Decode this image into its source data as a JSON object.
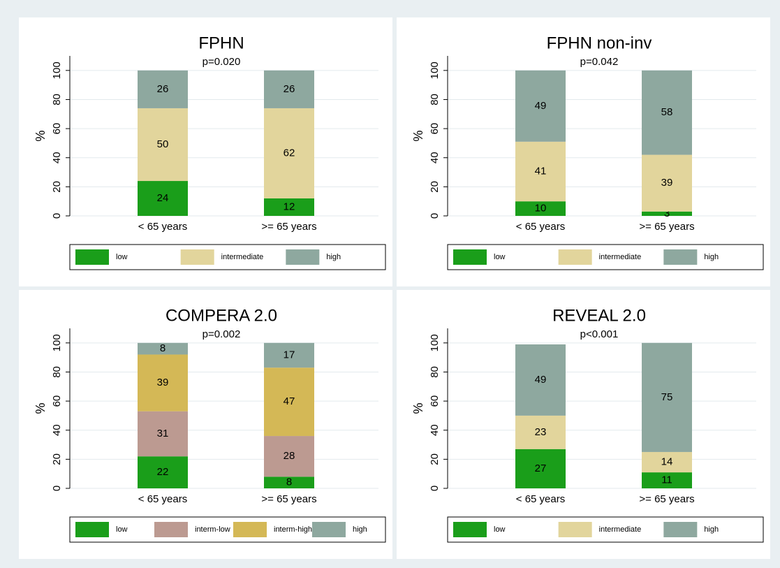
{
  "chart_data": [
    {
      "type": "stacked_bar",
      "title": "FPHN",
      "subtitle": "p=0.020",
      "y_label": "%",
      "categories": [
        "< 65 years",
        ">= 65 years"
      ],
      "series": [
        {
          "name": "low",
          "color": "#1a9e1a",
          "values": [
            24,
            12
          ]
        },
        {
          "name": "intermediate",
          "color": "#e2d59c",
          "values": [
            50,
            62
          ]
        },
        {
          "name": "high",
          "color": "#8ea89f",
          "values": [
            26,
            26
          ]
        }
      ],
      "ylim": [
        0,
        110
      ],
      "yticks": [
        0,
        20,
        40,
        60,
        80,
        100
      ],
      "grid": true,
      "legend": "bottom"
    },
    {
      "type": "stacked_bar",
      "title": "FPHN non-inv",
      "subtitle": "p=0.042",
      "y_label": "%",
      "categories": [
        "< 65 years",
        ">= 65 years"
      ],
      "series": [
        {
          "name": "low",
          "color": "#1a9e1a",
          "values": [
            10,
            3
          ]
        },
        {
          "name": "intermediate",
          "color": "#e2d59c",
          "values": [
            41,
            39
          ]
        },
        {
          "name": "high",
          "color": "#8ea89f",
          "values": [
            49,
            58
          ]
        }
      ],
      "ylim": [
        0,
        110
      ],
      "yticks": [
        0,
        20,
        40,
        60,
        80,
        100
      ],
      "grid": true,
      "legend": "bottom"
    },
    {
      "type": "stacked_bar",
      "title": "COMPERA 2.0",
      "subtitle": "p=0.002",
      "y_label": "%",
      "categories": [
        "< 65 years",
        ">= 65 years"
      ],
      "series": [
        {
          "name": "low",
          "color": "#1a9e1a",
          "values": [
            22,
            8
          ]
        },
        {
          "name": "interm-low",
          "color": "#bc9a91",
          "values": [
            31,
            28
          ]
        },
        {
          "name": "interm-high",
          "color": "#d4b856",
          "values": [
            39,
            47
          ]
        },
        {
          "name": "high",
          "color": "#8ea89f",
          "values": [
            8,
            17
          ]
        }
      ],
      "ylim": [
        0,
        110
      ],
      "yticks": [
        0,
        20,
        40,
        60,
        80,
        100
      ],
      "grid": true,
      "legend": "bottom"
    },
    {
      "type": "stacked_bar",
      "title": "REVEAL 2.0",
      "subtitle": "p<0.001",
      "y_label": "%",
      "categories": [
        "< 65 years",
        ">= 65 years"
      ],
      "series": [
        {
          "name": "low",
          "color": "#1a9e1a",
          "values": [
            27,
            11
          ]
        },
        {
          "name": "intermediate",
          "color": "#e2d59c",
          "values": [
            23,
            14
          ]
        },
        {
          "name": "high",
          "color": "#8ea89f",
          "values": [
            49,
            75
          ]
        }
      ],
      "ylim": [
        0,
        110
      ],
      "yticks": [
        0,
        20,
        40,
        60,
        80,
        100
      ],
      "grid": true,
      "legend": "bottom"
    }
  ]
}
